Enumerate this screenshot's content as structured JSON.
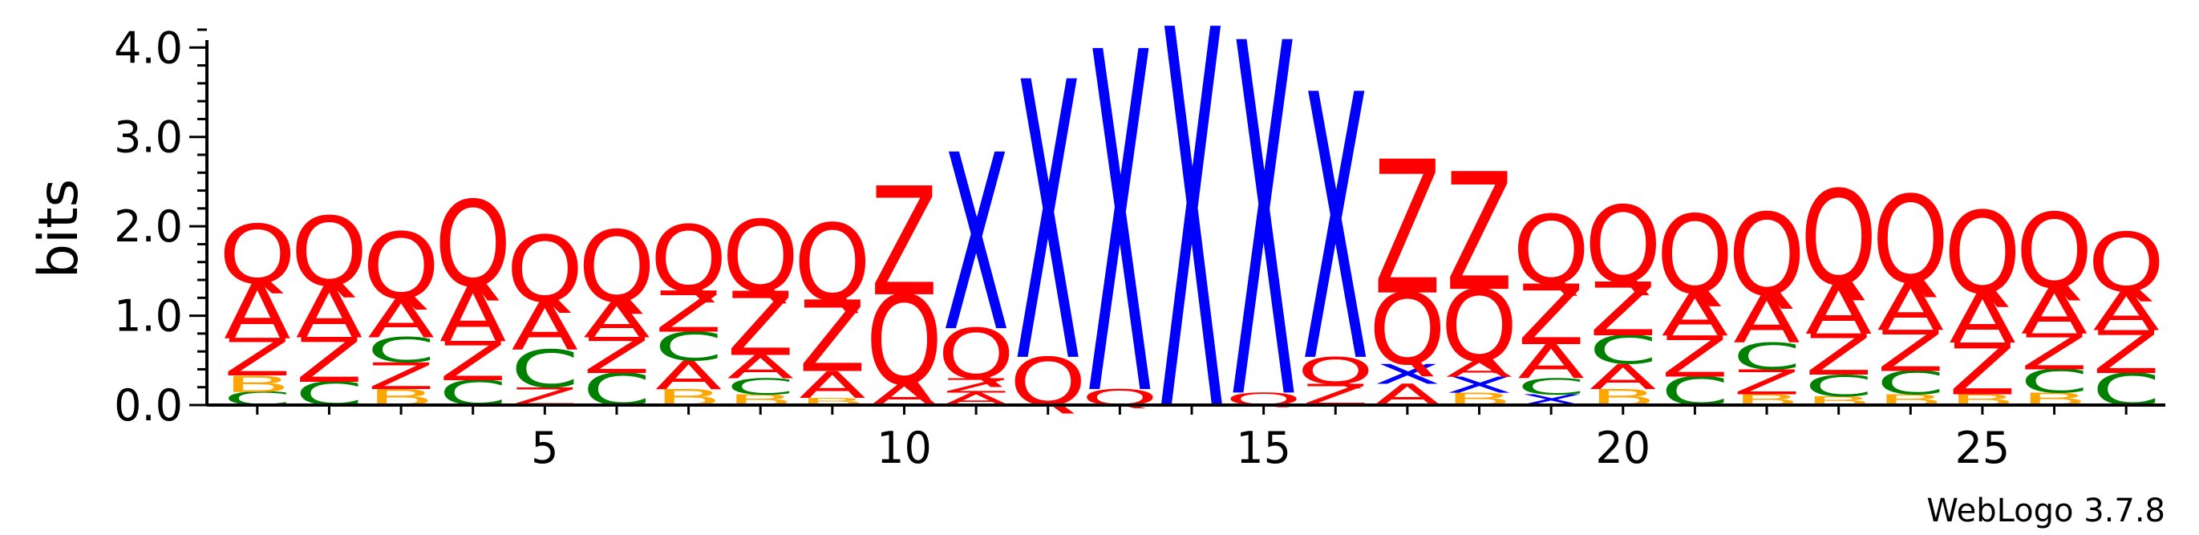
{
  "chart_data": {
    "type": "sequence-logo",
    "title": "",
    "ylabel": "bits",
    "xlabel": "",
    "ylim": [
      0,
      4.2
    ],
    "y_ticks": [
      0.0,
      1.0,
      2.0,
      3.0,
      4.0
    ],
    "y_tick_labels": [
      "0.0",
      "1.0",
      "2.0",
      "3.0",
      "4.0"
    ],
    "x_ticks": [
      5,
      10,
      15,
      20,
      25
    ],
    "x_tick_labels": [
      "5",
      "10",
      "15",
      "20",
      "25"
    ],
    "credit": "WebLogo 3.7.8",
    "colors": {
      "Q": "#ff0000",
      "A": "#ff0000",
      "Z": "#ff0000",
      "X": "#0000ff",
      "C": "#008000",
      "B": "#ffa500"
    },
    "positions": [
      {
        "pos": 1,
        "letters": [
          [
            "C",
            0.15
          ],
          [
            "B",
            0.18
          ],
          [
            "Z",
            0.42
          ],
          [
            "A",
            0.62
          ],
          [
            "Q",
            0.66
          ]
        ]
      },
      {
        "pos": 2,
        "letters": [
          [
            "C",
            0.26
          ],
          [
            "Z",
            0.5
          ],
          [
            "A",
            0.58
          ],
          [
            "Q",
            0.78
          ]
        ]
      },
      {
        "pos": 3,
        "letters": [
          [
            "B",
            0.18
          ],
          [
            "Z",
            0.3
          ],
          [
            "C",
            0.28
          ],
          [
            "A",
            0.44
          ],
          [
            "Q",
            0.74
          ]
        ]
      },
      {
        "pos": 4,
        "letters": [
          [
            "C",
            0.28
          ],
          [
            "Z",
            0.44
          ],
          [
            "A",
            0.62
          ],
          [
            "Q",
            0.96
          ]
        ]
      },
      {
        "pos": 5,
        "letters": [
          [
            "Z",
            0.2
          ],
          [
            "C",
            0.42
          ],
          [
            "A",
            0.54
          ],
          [
            "Q",
            0.74
          ]
        ]
      },
      {
        "pos": 6,
        "letters": [
          [
            "C",
            0.36
          ],
          [
            "Z",
            0.4
          ],
          [
            "A",
            0.4
          ],
          [
            "Q",
            0.8
          ]
        ]
      },
      {
        "pos": 7,
        "letters": [
          [
            "B",
            0.18
          ],
          [
            "A",
            0.32
          ],
          [
            "C",
            0.32
          ],
          [
            "Z",
            0.46
          ],
          [
            "Q",
            0.74
          ]
        ]
      },
      {
        "pos": 8,
        "letters": [
          [
            "B",
            0.12
          ],
          [
            "C",
            0.18
          ],
          [
            "A",
            0.26
          ],
          [
            "Z",
            0.72
          ],
          [
            "Q",
            0.8
          ]
        ]
      },
      {
        "pos": 9,
        "letters": [
          [
            "B",
            0.08
          ],
          [
            "A",
            0.3
          ],
          [
            "Z",
            0.8
          ],
          [
            "Q",
            0.86
          ]
        ]
      },
      {
        "pos": 10,
        "letters": [
          [
            "A",
            0.24
          ],
          [
            "Q",
            1.0
          ],
          [
            "Z",
            1.22
          ]
        ]
      },
      {
        "pos": 11,
        "letters": [
          [
            "A",
            0.14
          ],
          [
            "Z",
            0.16
          ],
          [
            "Q",
            0.56
          ],
          [
            "X",
            1.98
          ]
        ]
      },
      {
        "pos": 12,
        "letters": [
          [
            "Q",
            0.54
          ],
          [
            "X",
            3.12
          ]
        ]
      },
      {
        "pos": 13,
        "letters": [
          [
            "Q",
            0.18
          ],
          [
            "X",
            3.82
          ]
        ]
      },
      {
        "pos": 14,
        "letters": [
          [
            "X",
            4.25
          ]
        ]
      },
      {
        "pos": 15,
        "letters": [
          [
            "Q",
            0.14
          ],
          [
            "X",
            3.96
          ]
        ]
      },
      {
        "pos": 16,
        "letters": [
          [
            "Z",
            0.24
          ],
          [
            "Q",
            0.3
          ],
          [
            "X",
            2.98
          ]
        ]
      },
      {
        "pos": 17,
        "letters": [
          [
            "A",
            0.24
          ],
          [
            "X",
            0.22
          ],
          [
            "Q",
            0.8
          ],
          [
            "Z",
            1.5
          ]
        ]
      },
      {
        "pos": 18,
        "letters": [
          [
            "B",
            0.14
          ],
          [
            "X",
            0.18
          ],
          [
            "A",
            0.18
          ],
          [
            "Q",
            0.8
          ],
          [
            "Z",
            1.32
          ]
        ]
      },
      {
        "pos": 19,
        "letters": [
          [
            "X",
            0.12
          ],
          [
            "C",
            0.18
          ],
          [
            "A",
            0.38
          ],
          [
            "Z",
            0.68
          ],
          [
            "Q",
            0.78
          ]
        ]
      },
      {
        "pos": 20,
        "letters": [
          [
            "B",
            0.18
          ],
          [
            "A",
            0.28
          ],
          [
            "C",
            0.32
          ],
          [
            "Z",
            0.6
          ],
          [
            "Q",
            0.86
          ]
        ]
      },
      {
        "pos": 21,
        "letters": [
          [
            "C",
            0.32
          ],
          [
            "Z",
            0.46
          ],
          [
            "A",
            0.48
          ],
          [
            "Q",
            0.88
          ]
        ]
      },
      {
        "pos": 22,
        "letters": [
          [
            "B",
            0.12
          ],
          [
            "Z",
            0.28
          ],
          [
            "C",
            0.3
          ],
          [
            "A",
            0.54
          ],
          [
            "Q",
            0.92
          ]
        ]
      },
      {
        "pos": 23,
        "letters": [
          [
            "B",
            0.1
          ],
          [
            "C",
            0.24
          ],
          [
            "Z",
            0.46
          ],
          [
            "A",
            0.56
          ],
          [
            "Q",
            1.06
          ]
        ]
      },
      {
        "pos": 24,
        "letters": [
          [
            "B",
            0.12
          ],
          [
            "C",
            0.26
          ],
          [
            "Z",
            0.46
          ],
          [
            "A",
            0.54
          ],
          [
            "Q",
            0.98
          ]
        ]
      },
      {
        "pos": 25,
        "letters": [
          [
            "B",
            0.12
          ],
          [
            "Z",
            0.58
          ],
          [
            "A",
            0.56
          ],
          [
            "Q",
            0.92
          ]
        ]
      },
      {
        "pos": 26,
        "letters": [
          [
            "B",
            0.14
          ],
          [
            "C",
            0.26
          ],
          [
            "Z",
            0.4
          ],
          [
            "A",
            0.52
          ],
          [
            "Q",
            0.84
          ]
        ]
      },
      {
        "pos": 27,
        "letters": [
          [
            "C",
            0.36
          ],
          [
            "Z",
            0.48
          ],
          [
            "A",
            0.44
          ],
          [
            "Q",
            0.66
          ]
        ]
      }
    ]
  }
}
